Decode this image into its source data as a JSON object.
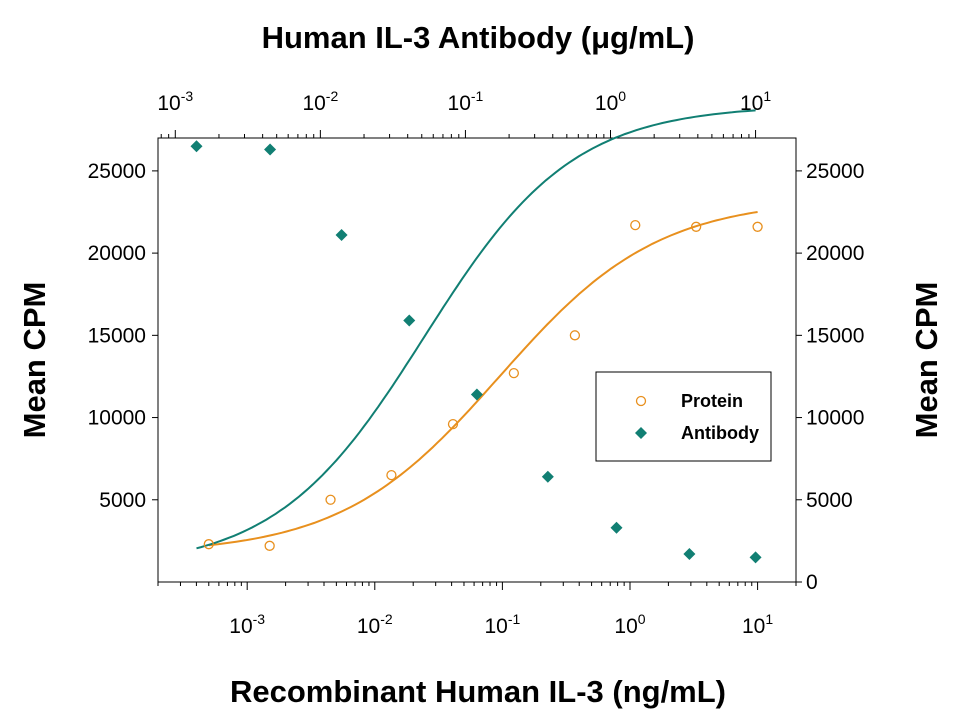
{
  "chart_data": {
    "type": "scatter",
    "top_title": "Human IL-3 Antibody (μg/mL)",
    "xlabel": "Recombinant Human IL-3 (ng/mL)",
    "ylabel_left": "Mean CPM",
    "ylabel_right": "Mean CPM",
    "x_scale": "log",
    "xlim": [
      0.0002,
      20
    ],
    "top_x_scale": "log",
    "top_xlim": [
      0.00076,
      19
    ],
    "ylim": [
      0,
      27000
    ],
    "y_ticks_left": [
      "5000",
      "10000",
      "15000",
      "20000",
      "25000"
    ],
    "y_ticks_right": [
      "0",
      "5000",
      "10000",
      "15000",
      "20000",
      "25000"
    ],
    "x_ticks_bottom": [
      {
        "base": "10",
        "exp": "-3"
      },
      {
        "base": "10",
        "exp": "-2"
      },
      {
        "base": "10",
        "exp": "-1"
      },
      {
        "base": "10",
        "exp": "0"
      },
      {
        "base": "10",
        "exp": "1"
      }
    ],
    "x_ticks_top": [
      {
        "base": "10",
        "exp": "-3"
      },
      {
        "base": "10",
        "exp": "-2"
      },
      {
        "base": "10",
        "exp": "-1"
      },
      {
        "base": "10",
        "exp": "0"
      },
      {
        "base": "10",
        "exp": "1"
      }
    ],
    "legend": {
      "position": "center-right",
      "entries": [
        "Protein",
        "Antibody"
      ]
    },
    "colors": {
      "protein": "#e8901e",
      "antibody": "#117f73"
    },
    "series": [
      {
        "name": "Protein",
        "axis": "bottom",
        "marker": "open-circle",
        "x": [
          0.0005,
          0.0015,
          0.0045,
          0.0135,
          0.041,
          0.123,
          0.37,
          1.1,
          3.3,
          10
        ],
        "y": [
          2300,
          2200,
          5000,
          6500,
          9600,
          12700,
          15000,
          21700,
          21600,
          21600
        ],
        "fit": {
          "bottom": 1700,
          "top": 23300,
          "ec50": 0.095,
          "hill": 0.7
        }
      },
      {
        "name": "Antibody",
        "axis": "top",
        "marker": "filled-diamond",
        "x": [
          0.0014,
          0.0045,
          0.014,
          0.041,
          0.12,
          0.37,
          1.1,
          3.5,
          10
        ],
        "y": [
          26500,
          26300,
          21100,
          15900,
          11400,
          6400,
          3300,
          1700,
          1500
        ],
        "fit": {
          "bottom": 800,
          "top": 29000,
          "ec50": 0.052,
          "hill": 0.85
        }
      }
    ]
  }
}
